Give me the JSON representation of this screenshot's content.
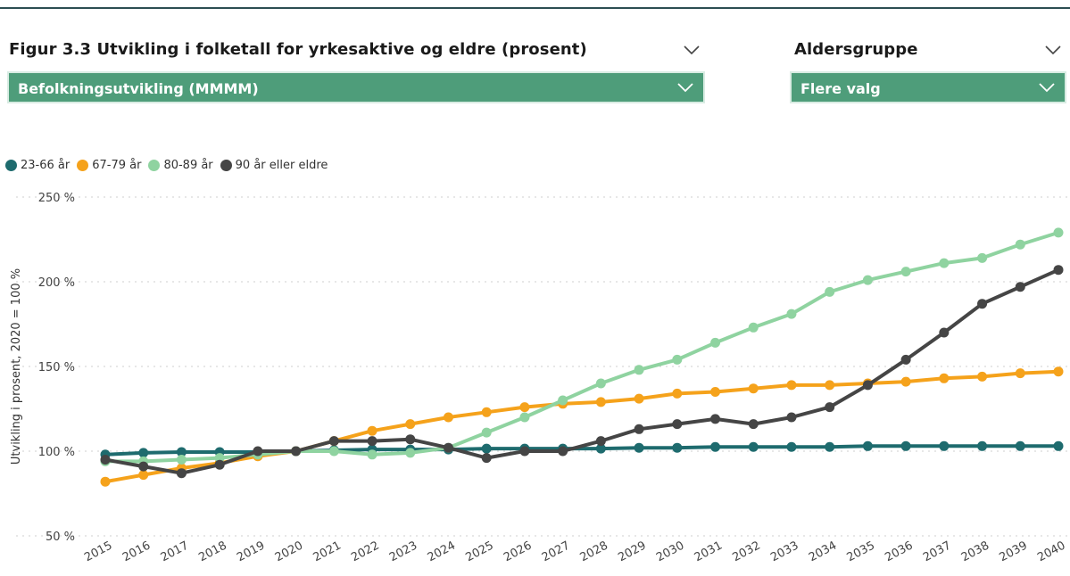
{
  "filters": {
    "figure": {
      "title": "Figur 3.3 Utvikling i folketall for yrkesaktive og eldre (prosent)",
      "selected": "Befolkningsutvikling (MMMM)"
    },
    "age_group": {
      "title": "Aldersgruppe",
      "selected": "Flere valg"
    }
  },
  "colors": {
    "accent": "#4e9d7a",
    "rule": "#2c4e52",
    "grid": "#cfcfcf"
  },
  "chart_data": {
    "type": "line",
    "ylabel": "Utvikling i prosent, 2020 = 100 %",
    "xlabel": "",
    "ylim": [
      50,
      250
    ],
    "yticks": [
      50,
      100,
      150,
      200,
      250
    ],
    "ytick_labels": [
      "50 %",
      "100 %",
      "150 %",
      "200 %",
      "250 %"
    ],
    "grid": true,
    "legend_position": "top-left",
    "x": [
      "2015",
      "2016",
      "2017",
      "2018",
      "2019",
      "2020",
      "2021",
      "2022",
      "2023",
      "2024",
      "2025",
      "2026",
      "2027",
      "2028",
      "2029",
      "2030",
      "2031",
      "2032",
      "2033",
      "2034",
      "2035",
      "2036",
      "2037",
      "2038",
      "2039",
      "2040"
    ],
    "series": [
      {
        "name": "23-66 år",
        "color": "#1e6b6e",
        "values": [
          98,
          99,
          99.5,
          99.5,
          99.5,
          100,
          100.5,
          101,
          101,
          101,
          101.5,
          101.5,
          101.5,
          101.5,
          102,
          102,
          102.5,
          102.5,
          102.5,
          102.5,
          103,
          103,
          103,
          103,
          103,
          103
        ]
      },
      {
        "name": "67-79 år",
        "color": "#f5a21b",
        "values": [
          82,
          86,
          90,
          93,
          97,
          100,
          106,
          112,
          116,
          120,
          123,
          126,
          128,
          129,
          131,
          134,
          135,
          137,
          139,
          139,
          140,
          141,
          143,
          144,
          146,
          147
        ]
      },
      {
        "name": "80-89 år",
        "color": "#8fd3a0",
        "values": [
          94,
          94,
          95,
          96,
          98,
          100,
          100,
          98,
          99,
          102,
          111,
          120,
          130,
          140,
          148,
          154,
          164,
          173,
          181,
          194,
          201,
          206,
          211,
          214,
          222,
          229
        ]
      },
      {
        "name": "90 år eller eldre",
        "color": "#454545",
        "values": [
          95,
          91,
          87,
          92,
          100,
          100,
          106,
          106,
          107,
          102,
          96,
          100,
          100,
          106,
          113,
          116,
          119,
          116,
          120,
          126,
          139,
          154,
          170,
          187,
          197,
          207
        ]
      }
    ]
  }
}
